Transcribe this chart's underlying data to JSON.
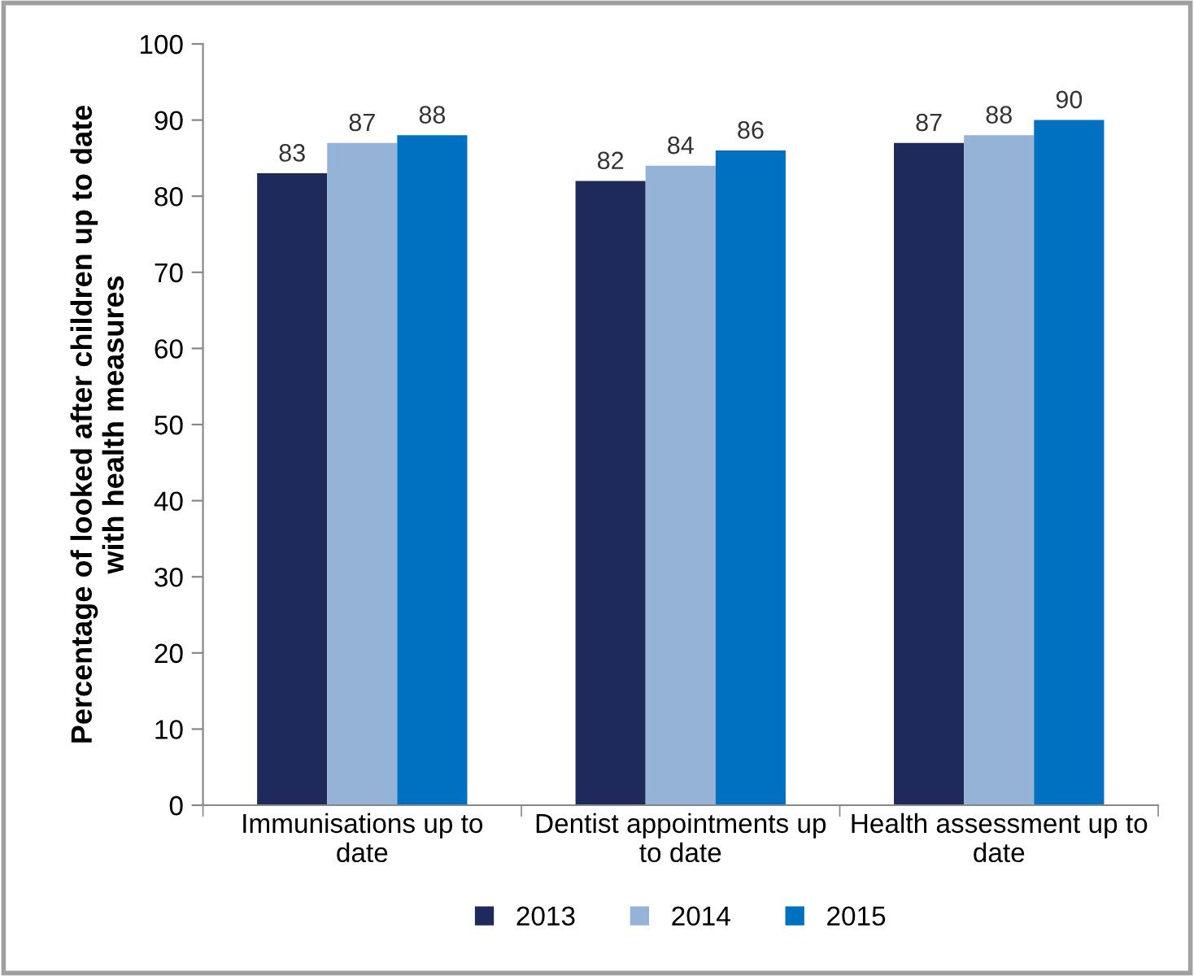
{
  "chart_data": {
    "type": "bar",
    "ylabel": "Percentage of looked after children up to date\nwith health measures",
    "categories": [
      "Immunisations up to\ndate",
      "Dentist appointments up\nto date",
      "Health assessment up to\ndate"
    ],
    "series": [
      {
        "name": "2013",
        "color": "#1f2a5c",
        "values": [
          83,
          82,
          87
        ]
      },
      {
        "name": "2014",
        "color": "#95b3d7",
        "values": [
          87,
          84,
          88
        ]
      },
      {
        "name": "2015",
        "color": "#0070c0",
        "values": [
          88,
          86,
          90
        ]
      }
    ],
    "ylim": [
      0,
      100
    ],
    "yticks": [
      0,
      10,
      20,
      30,
      40,
      50,
      60,
      70,
      80,
      90,
      100
    ],
    "grid": false,
    "legend": "bottom",
    "data_labels": true
  }
}
